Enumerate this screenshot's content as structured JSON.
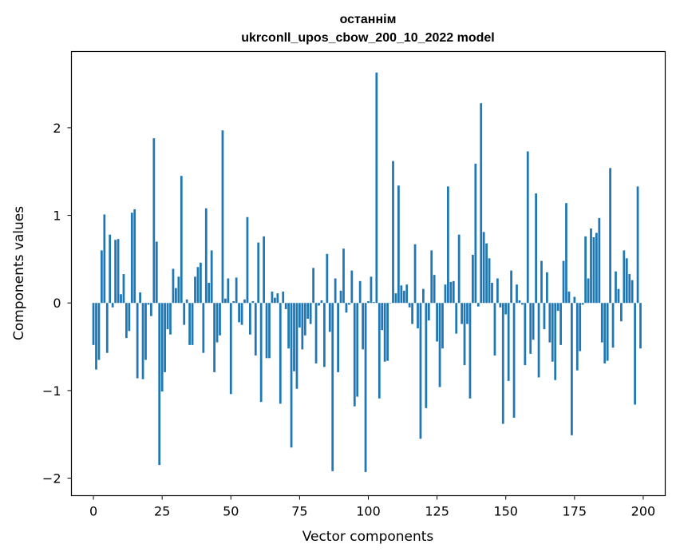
{
  "chart_data": {
    "type": "bar",
    "title": [
      "останнім",
      "ukrconll_upos_cbow_200_10_2022 model"
    ],
    "xlabel": "Vector components",
    "ylabel": "Components values",
    "xlim": [
      -8,
      208
    ],
    "ylim": [
      -2.2,
      2.87
    ],
    "xticks": [
      0,
      25,
      50,
      75,
      100,
      125,
      150,
      175,
      200
    ],
    "yticks": [
      -2,
      -1,
      0,
      1,
      2
    ],
    "ytick_labels": [
      "−2",
      "−1",
      "0",
      "1",
      "2"
    ],
    "bar_color": "#1f77b4",
    "grid": false,
    "x": [
      0,
      1,
      2,
      3,
      4,
      5,
      6,
      7,
      8,
      9,
      10,
      11,
      12,
      13,
      14,
      15,
      16,
      17,
      18,
      19,
      20,
      21,
      22,
      23,
      24,
      25,
      26,
      27,
      28,
      29,
      30,
      31,
      32,
      33,
      34,
      35,
      36,
      37,
      38,
      39,
      40,
      41,
      42,
      43,
      44,
      45,
      46,
      47,
      48,
      49,
      50,
      51,
      52,
      53,
      54,
      55,
      56,
      57,
      58,
      59,
      60,
      61,
      62,
      63,
      64,
      65,
      66,
      67,
      68,
      69,
      70,
      71,
      72,
      73,
      74,
      75,
      76,
      77,
      78,
      79,
      80,
      81,
      82,
      83,
      84,
      85,
      86,
      87,
      88,
      89,
      90,
      91,
      92,
      93,
      94,
      95,
      96,
      97,
      98,
      99,
      100,
      101,
      102,
      103,
      104,
      105,
      106,
      107,
      108,
      109,
      110,
      111,
      112,
      113,
      114,
      115,
      116,
      117,
      118,
      119,
      120,
      121,
      122,
      123,
      124,
      125,
      126,
      127,
      128,
      129,
      130,
      131,
      132,
      133,
      134,
      135,
      136,
      137,
      138,
      139,
      140,
      141,
      142,
      143,
      144,
      145,
      146,
      147,
      148,
      149,
      150,
      151,
      152,
      153,
      154,
      155,
      156,
      157,
      158,
      159,
      160,
      161,
      162,
      163,
      164,
      165,
      166,
      167,
      168,
      169,
      170,
      171,
      172,
      173,
      174,
      175,
      176,
      177,
      178,
      179,
      180,
      181,
      182,
      183,
      184,
      185,
      186,
      187,
      188,
      189,
      190,
      191,
      192,
      193,
      194,
      195,
      196,
      197,
      198,
      199
    ],
    "values": [
      -0.48,
      -0.76,
      -0.65,
      0.6,
      1.01,
      -0.57,
      0.78,
      -0.05,
      0.72,
      0.73,
      0.1,
      0.33,
      -0.4,
      -0.32,
      1.03,
      1.07,
      -0.86,
      0.12,
      -0.87,
      -0.65,
      -0.02,
      -0.15,
      1.88,
      0.7,
      -1.85,
      -1.01,
      -0.79,
      -0.3,
      -0.36,
      0.39,
      0.17,
      0.3,
      1.45,
      -0.25,
      0.04,
      -0.48,
      -0.48,
      0.3,
      0.41,
      0.46,
      -0.57,
      1.08,
      0.23,
      0.6,
      -0.79,
      -0.45,
      -0.37,
      1.97,
      0.05,
      0.28,
      -1.04,
      0.02,
      0.29,
      -0.22,
      -0.25,
      0.04,
      0.98,
      -0.36,
      0.02,
      -0.6,
      0.69,
      -1.13,
      0.76,
      -0.63,
      -0.63,
      0.13,
      0.06,
      0.11,
      -1.15,
      0.13,
      -0.07,
      -0.52,
      -1.65,
      -0.78,
      -0.98,
      -0.28,
      -0.53,
      -0.37,
      -0.18,
      -0.24,
      0.4,
      -0.69,
      -0.03,
      0.03,
      -0.73,
      0.56,
      -0.33,
      -1.92,
      0.28,
      -0.79,
      0.14,
      0.62,
      -0.11,
      -0.02,
      0.37,
      -1.18,
      -1.07,
      0.25,
      -0.53,
      -1.93,
      0.02,
      0.3,
      0.01,
      2.63,
      -1.09,
      -0.31,
      -0.67,
      -0.66,
      0.0,
      1.62,
      0.11,
      1.34,
      0.2,
      0.14,
      0.21,
      -0.05,
      -0.24,
      0.67,
      -0.29,
      -1.55,
      0.16,
      -1.2,
      -0.2,
      0.6,
      0.32,
      -0.44,
      -0.96,
      -0.52,
      0.21,
      1.33,
      0.24,
      0.25,
      -0.35,
      0.78,
      -0.24,
      -0.71,
      -0.24,
      -1.09,
      0.55,
      1.59,
      -0.04,
      2.28,
      0.81,
      0.68,
      0.51,
      0.23,
      -0.6,
      0.28,
      -0.05,
      -1.38,
      -0.13,
      -0.89,
      0.37,
      -1.31,
      0.21,
      0.03,
      -0.02,
      -0.71,
      1.73,
      -0.58,
      -0.42,
      1.25,
      -0.85,
      0.48,
      -0.3,
      0.35,
      -0.45,
      -0.67,
      -0.88,
      -0.09,
      -0.48,
      0.48,
      1.14,
      0.13,
      -1.51,
      0.07,
      -0.77,
      -0.55,
      -0.02,
      0.76,
      0.28,
      0.85,
      0.75,
      0.8,
      0.97,
      -0.45,
      -0.69,
      -0.66,
      1.54,
      -0.51,
      0.36,
      0.16,
      -0.21,
      0.6,
      0.51,
      0.33,
      0.26,
      -1.16,
      1.33,
      -0.52
    ]
  }
}
